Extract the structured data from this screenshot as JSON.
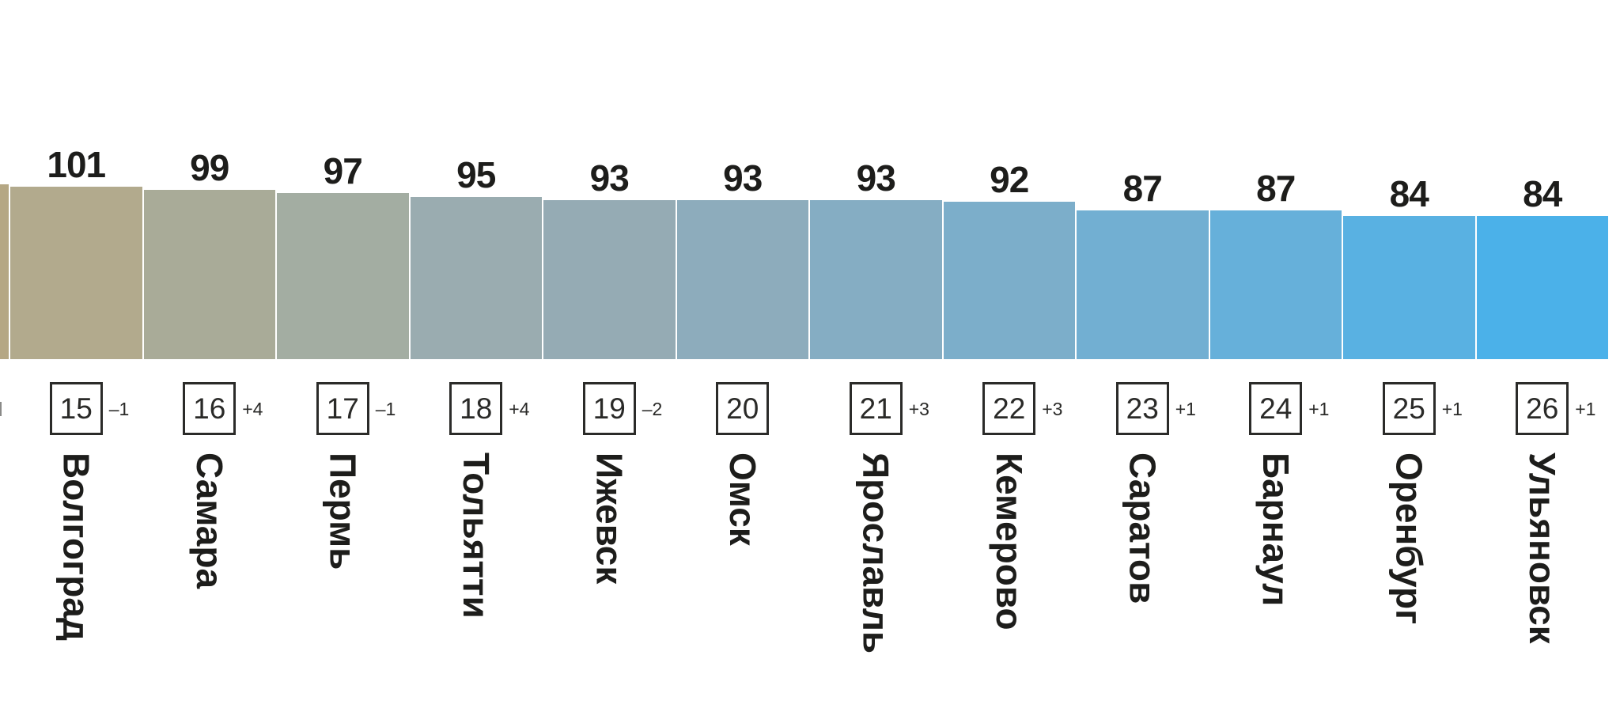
{
  "chart_data": {
    "type": "bar",
    "title": "",
    "orientation": "vertical",
    "grid": false,
    "legend_position": "none",
    "value_labels": "above bars",
    "baseline_value": 0,
    "categories": [
      "Волгоград",
      "Самара",
      "Пермь",
      "Тольятти",
      "Ижевск",
      "Омск",
      "Ярославль",
      "Кемерово",
      "Саратов",
      "Барнаул",
      "Оренбург",
      "Ульяновск"
    ],
    "values": [
      101,
      99,
      97,
      95,
      93,
      93,
      93,
      92,
      87,
      87,
      84,
      84
    ],
    "bars": [
      {
        "city": "Волгоград",
        "value": 101,
        "rank": 15,
        "change": "–1",
        "color": "#b2aa8d"
      },
      {
        "city": "Самара",
        "value": 99,
        "rank": 16,
        "change": "+4",
        "color": "#a9ab98"
      },
      {
        "city": "Пермь",
        "value": 97,
        "rank": 17,
        "change": "–1",
        "color": "#a3ada2"
      },
      {
        "city": "Тольятти",
        "value": 95,
        "rank": 18,
        "change": "+4",
        "color": "#9aacb0"
      },
      {
        "city": "Ижевск",
        "value": 93,
        "rank": 19,
        "change": "–2",
        "color": "#95abb4"
      },
      {
        "city": "Омск",
        "value": 93,
        "rank": 20,
        "change": "",
        "color": "#8dacbc"
      },
      {
        "city": "Ярославль",
        "value": 93,
        "rank": 21,
        "change": "+3",
        "color": "#85adc3"
      },
      {
        "city": "Кемерово",
        "value": 92,
        "rank": 22,
        "change": "+3",
        "color": "#7caeca"
      },
      {
        "city": "Саратов",
        "value": 87,
        "rank": 23,
        "change": "+1",
        "color": "#72afd2"
      },
      {
        "city": "Барнаул",
        "value": 87,
        "rank": 24,
        "change": "+1",
        "color": "#66b0da"
      },
      {
        "city": "Оренбург",
        "value": 84,
        "rank": 25,
        "change": "+1",
        "color": "#59b1e2"
      },
      {
        "city": "Ульяновск",
        "value": 84,
        "rank": 26,
        "change": "+1",
        "color": "#4bb1e9"
      }
    ],
    "clipped_left_bar": {
      "color": "#b5a784"
    },
    "colors": {
      "text": "#1d1d1b",
      "rank_box_border": "#2b2b29",
      "background": "#ffffff"
    }
  }
}
